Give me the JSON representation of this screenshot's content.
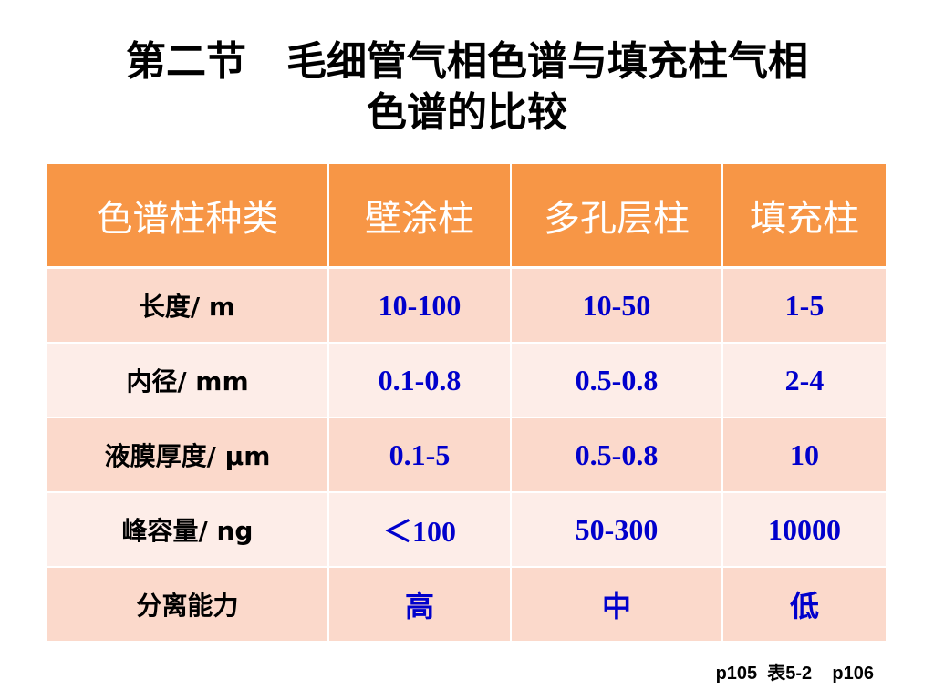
{
  "header": {
    "title": [
      "第二节　毛细管气相色谱与填充柱气相",
      "色谱的比较"
    ]
  },
  "table": {
    "columns": [
      "色谱柱种类",
      "壁涂柱",
      "多孔层柱",
      "填充柱"
    ],
    "rows": [
      [
        "长度/ m",
        "10-100",
        "10-50",
        "1-5"
      ],
      [
        "内径/ mm",
        "0.1-0.8",
        "0.5-0.8",
        "2-4"
      ],
      [
        "液膜厚度/ µm",
        "0.1-5",
        "0.5-0.8",
        "10"
      ],
      [
        "峰容量/ ng",
        "＜100",
        "50-300",
        "10000"
      ],
      [
        "分离能力",
        "高",
        "中",
        "低"
      ]
    ]
  },
  "footer": {
    "note": "p105  表5-2    p106"
  }
}
